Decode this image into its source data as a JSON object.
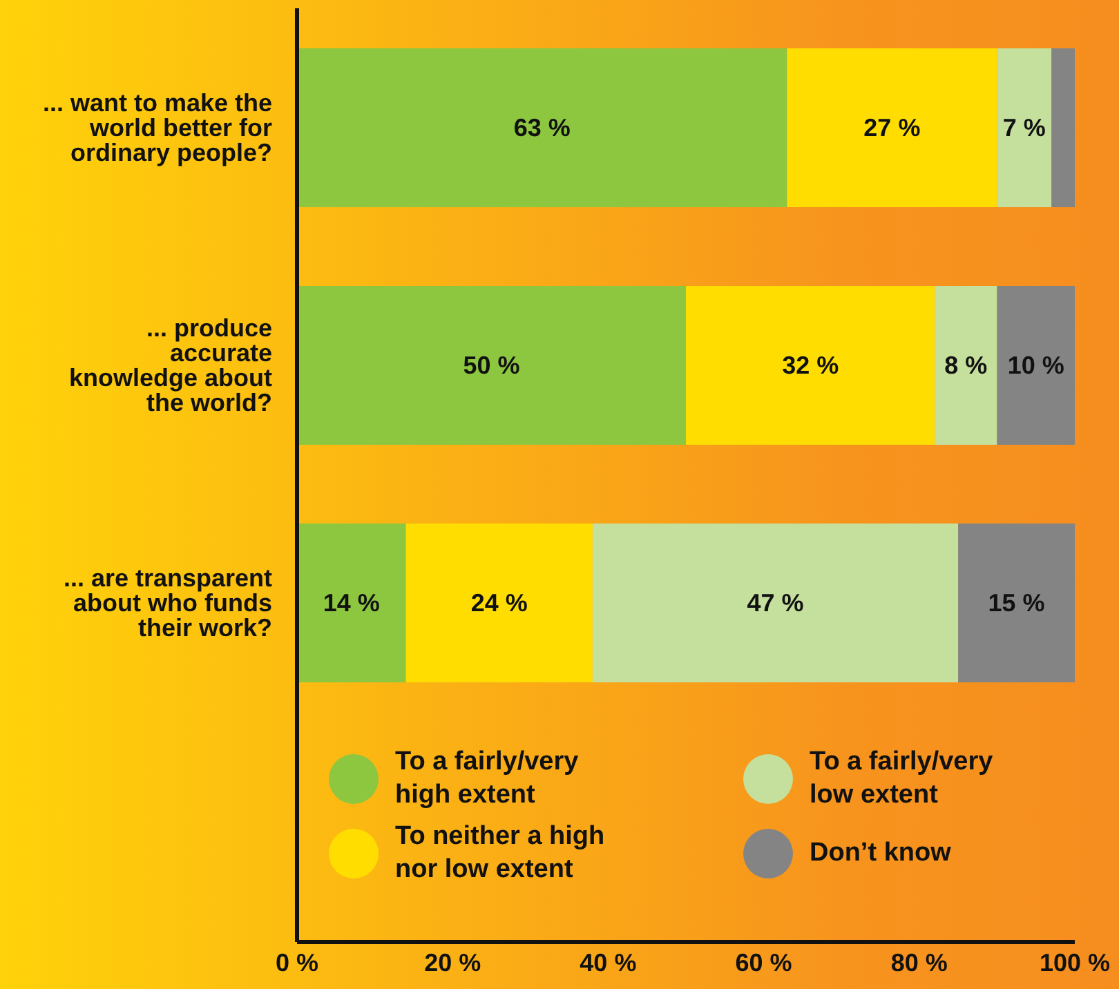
{
  "chart_data": {
    "type": "bar",
    "orientation": "horizontal",
    "stacked": true,
    "categories": [
      "... want to make the world better for ordinary people?",
      "... produce accurate knowledge about the world?",
      "... are transparent about who funds their work?"
    ],
    "series": [
      {
        "name": "To a fairly/very high extent",
        "color": "#8dc63f",
        "values": [
          63,
          50,
          14
        ],
        "value_labels": [
          "63 %",
          "50 %",
          "14 %"
        ]
      },
      {
        "name": "To neither a high nor low extent",
        "color": "#ffdd00",
        "values": [
          27,
          32,
          24
        ],
        "value_labels": [
          "27 %",
          "32 %",
          "24 %"
        ]
      },
      {
        "name": "To a fairly/very low extent",
        "color": "#c5df9c",
        "values": [
          7,
          8,
          47
        ],
        "value_labels": [
          "7 %",
          "8 %",
          "47 %"
        ]
      },
      {
        "name": "Don’t know",
        "color": "#848484",
        "values": [
          3,
          10,
          15
        ],
        "value_labels": [
          null,
          "10 %",
          "15 %"
        ]
      }
    ],
    "xlim": [
      0,
      100
    ],
    "xticks": [
      {
        "value": 0,
        "label": "0 %"
      },
      {
        "value": 20,
        "label": "20 %"
      },
      {
        "value": 40,
        "label": "40 %"
      },
      {
        "value": 60,
        "label": "60 %"
      },
      {
        "value": 80,
        "label": "80 %"
      },
      {
        "value": 100,
        "label": "100 %"
      }
    ],
    "grid": false,
    "legend": "bottom"
  }
}
